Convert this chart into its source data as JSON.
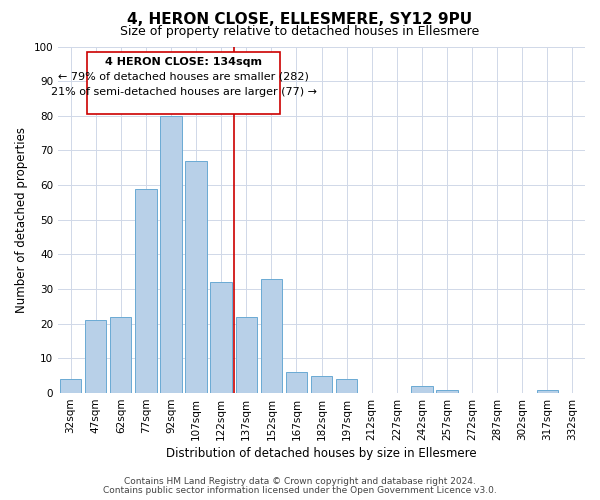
{
  "title": "4, HERON CLOSE, ELLESMERE, SY12 9PU",
  "subtitle": "Size of property relative to detached houses in Ellesmere",
  "xlabel": "Distribution of detached houses by size in Ellesmere",
  "ylabel": "Number of detached properties",
  "bar_color": "#b8d0e8",
  "bar_edge_color": "#6aaad4",
  "background_color": "#ffffff",
  "grid_color": "#d0d8e8",
  "categories": [
    "32sqm",
    "47sqm",
    "62sqm",
    "77sqm",
    "92sqm",
    "107sqm",
    "122sqm",
    "137sqm",
    "152sqm",
    "167sqm",
    "182sqm",
    "197sqm",
    "212sqm",
    "227sqm",
    "242sqm",
    "257sqm",
    "272sqm",
    "287sqm",
    "302sqm",
    "317sqm",
    "332sqm"
  ],
  "values": [
    4,
    21,
    22,
    59,
    80,
    67,
    32,
    22,
    33,
    6,
    5,
    4,
    0,
    0,
    2,
    1,
    0,
    0,
    0,
    1,
    0
  ],
  "ylim": [
    0,
    100
  ],
  "yticks": [
    0,
    10,
    20,
    30,
    40,
    50,
    60,
    70,
    80,
    90,
    100
  ],
  "vline_index": 7,
  "vline_color": "#cc0000",
  "annotation_title": "4 HERON CLOSE: 134sqm",
  "annotation_line1": "← 79% of detached houses are smaller (282)",
  "annotation_line2": "21% of semi-detached houses are larger (77) →",
  "annotation_box_color": "#cc0000",
  "annotation_box_fill": "#ffffff",
  "footer_line1": "Contains HM Land Registry data © Crown copyright and database right 2024.",
  "footer_line2": "Contains public sector information licensed under the Open Government Licence v3.0.",
  "title_fontsize": 11,
  "subtitle_fontsize": 9,
  "ylabel_fontsize": 8.5,
  "xlabel_fontsize": 8.5,
  "tick_fontsize": 7.5,
  "annotation_fontsize": 8,
  "footer_fontsize": 6.5
}
